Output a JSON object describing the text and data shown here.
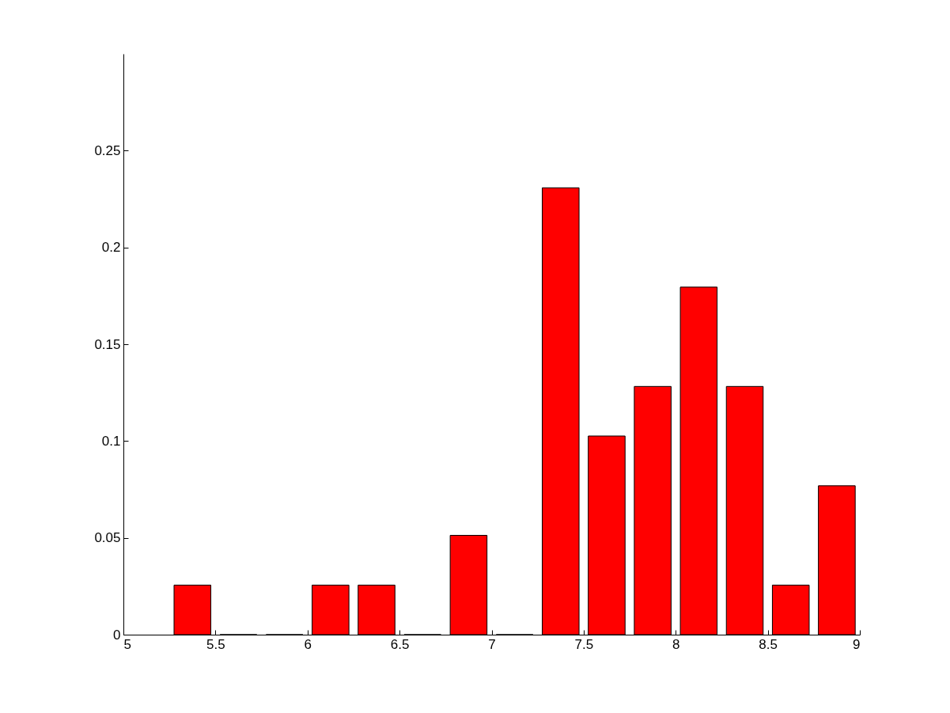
{
  "chart_data": {
    "type": "bar",
    "x": [
      5.375,
      5.625,
      5.875,
      6.125,
      6.375,
      6.625,
      6.875,
      7.125,
      7.375,
      7.625,
      7.875,
      8.125,
      8.375,
      8.625,
      8.875
    ],
    "values": [
      0.0256,
      0,
      0,
      0.0256,
      0.0256,
      0,
      0.0513,
      0,
      0.2308,
      0.1026,
      0.1282,
      0.1795,
      0.1282,
      0.0256,
      0.0769
    ],
    "color": "#ff0000",
    "xlim": [
      5,
      9
    ],
    "xticks": [
      5,
      5.5,
      6,
      6.5,
      7,
      7.5,
      8,
      8.5,
      9
    ],
    "ylim": [
      0,
      0.3
    ],
    "yticks": [
      0,
      0.05,
      0.1,
      0.15,
      0.2,
      0.25
    ],
    "grid": false
  }
}
